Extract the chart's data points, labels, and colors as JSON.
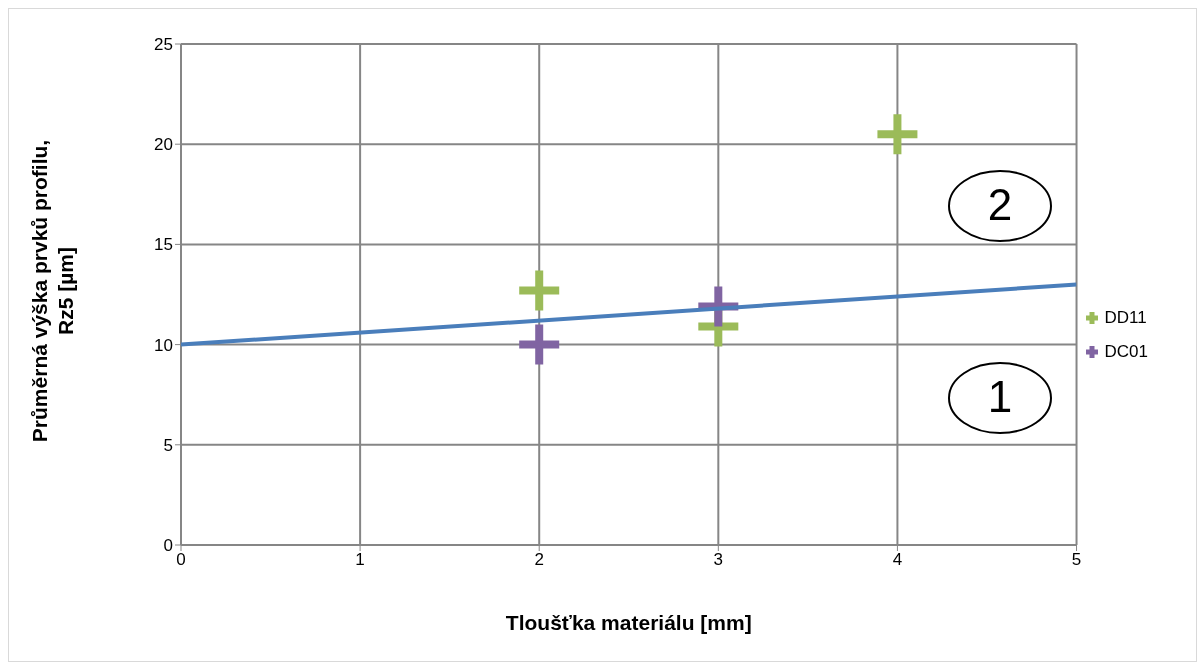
{
  "chart_data": {
    "type": "scatter",
    "xlabel": "Tloušťka materiálu [mm]",
    "ylabel": "Průměrná výška prvků profilu, Rz5 [µm]",
    "xlim": [
      0,
      5
    ],
    "xticks": [
      0,
      1,
      2,
      3,
      4,
      5
    ],
    "ylim": [
      0,
      25
    ],
    "yticks": [
      0,
      5,
      10,
      15,
      20,
      25
    ],
    "grid": true,
    "legend": "right",
    "marker": "cross",
    "series": [
      {
        "name": "DD11",
        "color": "#9bbb59",
        "x": [
          2,
          3,
          4
        ],
        "values": [
          12.7,
          10.9,
          20.5
        ]
      },
      {
        "name": "DC01",
        "color": "#8064a2",
        "x": [
          2,
          3
        ],
        "values": [
          10,
          11.9
        ]
      },
      {
        "type": "line",
        "color": "#4a7ebb",
        "x": [
          0,
          5
        ],
        "values": [
          10,
          13
        ],
        "marker": "none",
        "line_style": "solid"
      }
    ],
    "annotations": [
      "2",
      "1"
    ]
  }
}
